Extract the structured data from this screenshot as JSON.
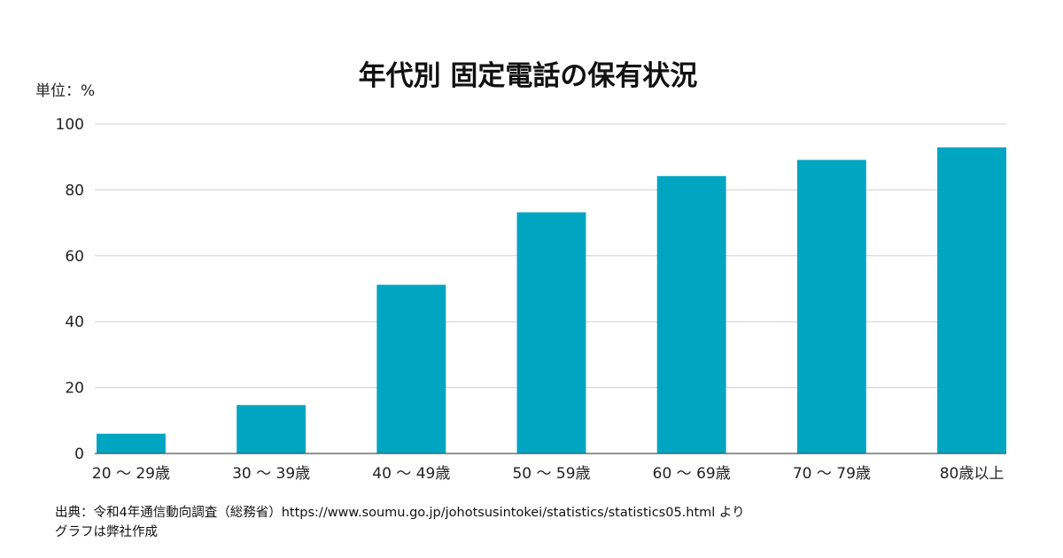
{
  "chart_data": {
    "type": "bar",
    "title": "年代別 固定電話の保有状況",
    "unit_label": "単位：%",
    "categories": [
      "20 ～ 29歳",
      "30 ～ 39歳",
      "40 ～ 49歳",
      "50 ～ 59歳",
      "60 ～ 69歳",
      "70 ～ 79歳",
      "80歳以上"
    ],
    "values": [
      6.0,
      14.7,
      51.2,
      73.2,
      84.2,
      89.1,
      92.9
    ],
    "ylim": [
      0,
      100
    ],
    "yticks": [
      "0",
      "20",
      "40",
      "60",
      "80",
      "100"
    ],
    "ytick_values": [
      0,
      20,
      40,
      60,
      80,
      100
    ],
    "grid": true,
    "bar_color": "#00A5C2",
    "grid_color": "#d0d0d0",
    "axis_color": "#555555"
  },
  "footer": {
    "source": "出典：令和4年通信動向調査（総務省）https://www.soumu.go.jp/johotsusintokei/statistics/statistics05.html より",
    "credit": "グラフは弊社作成"
  }
}
